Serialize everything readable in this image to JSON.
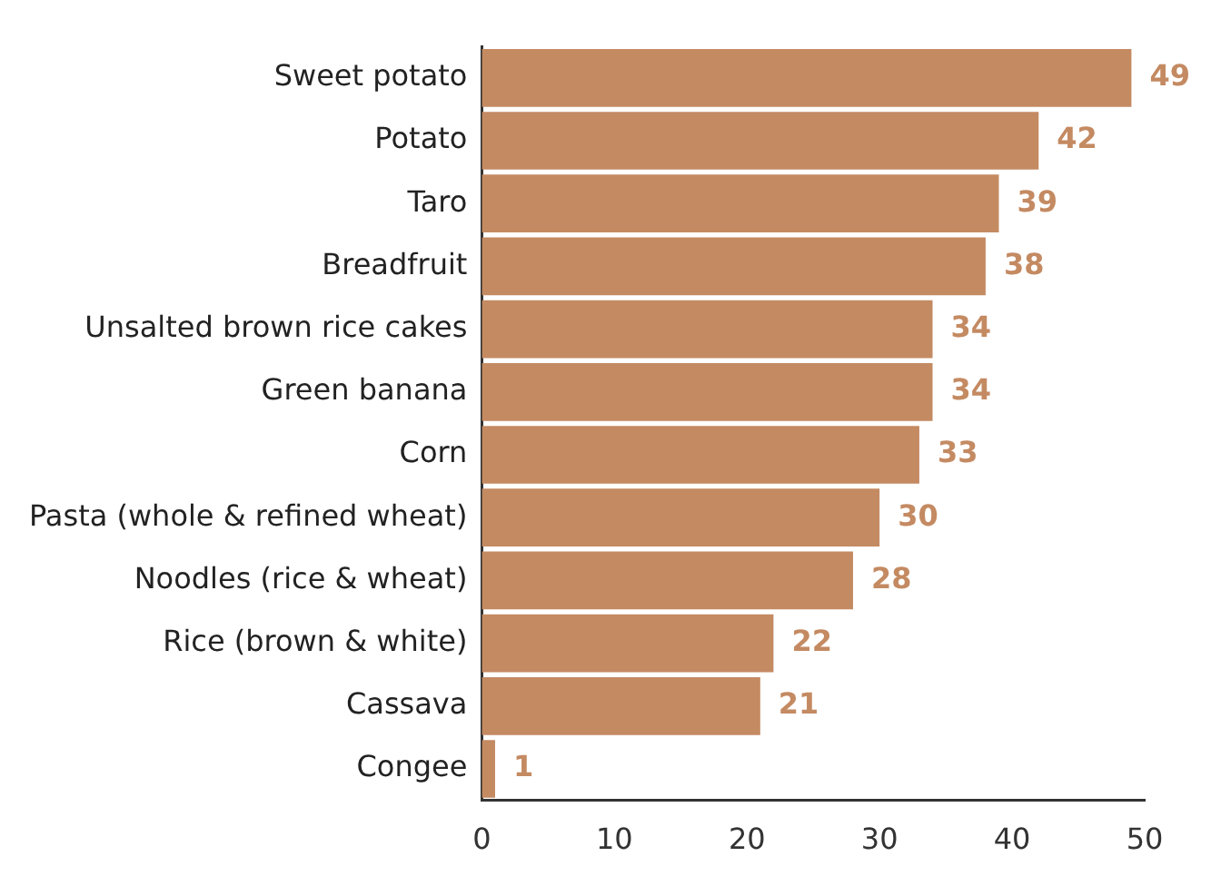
{
  "chart_data": {
    "type": "bar",
    "orientation": "horizontal",
    "categories": [
      "Sweet potato",
      "Potato",
      "Taro",
      "Breadfruit",
      "Unsalted brown rice cakes",
      "Green banana",
      "Corn",
      "Pasta (whole & refined wheat)",
      "Noodles (rice & wheat)",
      "Rice (brown & white)",
      "Cassava",
      "Congee"
    ],
    "values": [
      49,
      42,
      39,
      38,
      34,
      34,
      33,
      30,
      28,
      22,
      21,
      1
    ],
    "color": "#c48a62",
    "xlim": [
      0,
      50
    ],
    "xticks": [
      0,
      10,
      20,
      30,
      40,
      50
    ],
    "grid": false,
    "legend": false,
    "data_labels": true
  }
}
